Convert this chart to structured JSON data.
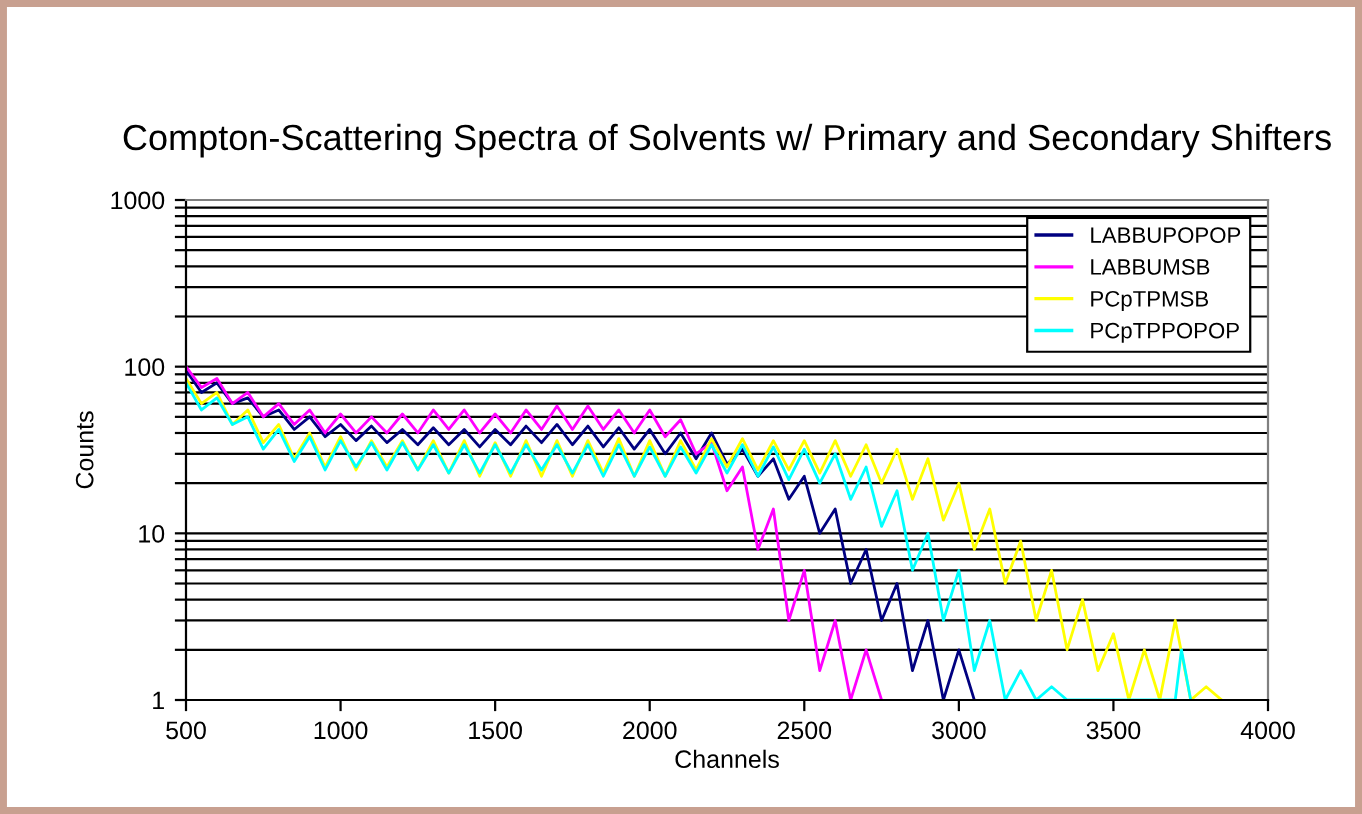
{
  "chart_data": {
    "type": "line",
    "title": "Compton-Scattering Spectra of Solvents w/ Primary and Secondary Shifters",
    "xlabel": "Channels",
    "ylabel": "Counts",
    "log": "y",
    "grid": "y",
    "legend": "top right",
    "marker": "none",
    "line_style": "solid",
    "xlim": [
      500,
      4000
    ],
    "xticks": [
      500,
      1000,
      1500,
      2000,
      2500,
      3000,
      3500,
      4000
    ],
    "ylim": [
      1,
      1000
    ],
    "yticks": [
      1,
      {
        "value": 2,
        "label": null
      },
      {
        "value": 3,
        "label": null
      },
      {
        "value": 4,
        "label": null
      },
      {
        "value": 5,
        "label": null
      },
      {
        "value": 6,
        "label": null
      },
      {
        "value": 7,
        "label": null
      },
      {
        "value": 8,
        "label": null
      },
      {
        "value": 9,
        "label": null
      },
      10,
      {
        "value": 20,
        "label": null
      },
      {
        "value": 30,
        "label": null
      },
      {
        "value": 40,
        "label": null
      },
      {
        "value": 50,
        "label": null
      },
      {
        "value": 60,
        "label": null
      },
      {
        "value": 70,
        "label": null
      },
      {
        "value": 80,
        "label": null
      },
      {
        "value": 90,
        "label": null
      },
      100,
      {
        "value": 200,
        "label": null
      },
      {
        "value": 300,
        "label": null
      },
      {
        "value": 400,
        "label": null
      },
      {
        "value": 500,
        "label": null
      },
      {
        "value": 600,
        "label": null
      },
      {
        "value": 700,
        "label": null
      },
      {
        "value": 800,
        "label": null
      },
      {
        "value": 900,
        "label": null
      },
      1000
    ],
    "series": [
      {
        "name": "LABBUPOPOP",
        "color": "#000080",
        "x": [
          500,
          550,
          600,
          650,
          700,
          750,
          800,
          850,
          900,
          950,
          1000,
          1050,
          1100,
          1150,
          1200,
          1250,
          1300,
          1350,
          1400,
          1450,
          1500,
          1550,
          1600,
          1650,
          1700,
          1750,
          1800,
          1850,
          1900,
          1950,
          2000,
          2050,
          2100,
          2150,
          2200,
          2250,
          2300,
          2350,
          2400,
          2450,
          2500,
          2550,
          2600,
          2650,
          2700,
          2750,
          2800,
          2850,
          2900,
          2950,
          3000,
          3050
        ],
        "values": [
          95,
          70,
          80,
          60,
          65,
          50,
          55,
          42,
          50,
          38,
          45,
          36,
          44,
          35,
          42,
          34,
          43,
          34,
          42,
          33,
          42,
          34,
          44,
          35,
          45,
          34,
          44,
          33,
          43,
          32,
          42,
          30,
          40,
          28,
          40,
          26,
          32,
          22,
          28,
          16,
          22,
          10,
          14,
          5,
          8,
          3,
          5,
          1.5,
          3,
          1,
          2,
          1
        ]
      },
      {
        "name": "LABBUMSB",
        "color": "#ff00ff",
        "x": [
          500,
          550,
          600,
          650,
          700,
          750,
          800,
          850,
          900,
          950,
          1000,
          1050,
          1100,
          1150,
          1200,
          1250,
          1300,
          1350,
          1400,
          1450,
          1500,
          1550,
          1600,
          1650,
          1700,
          1750,
          1800,
          1850,
          1900,
          1950,
          2000,
          2050,
          2100,
          2150,
          2200,
          2250,
          2300,
          2350,
          2400,
          2450,
          2500,
          2550,
          2600,
          2650,
          2700,
          2750
        ],
        "values": [
          100,
          75,
          85,
          60,
          70,
          50,
          60,
          45,
          55,
          40,
          52,
          40,
          50,
          40,
          52,
          40,
          55,
          42,
          55,
          40,
          52,
          40,
          55,
          42,
          58,
          42,
          58,
          42,
          55,
          40,
          55,
          38,
          48,
          30,
          35,
          18,
          25,
          8,
          14,
          3,
          6,
          1.5,
          3,
          1,
          2,
          1
        ]
      },
      {
        "name": "PCpTPMSB",
        "color": "#ffff00",
        "x": [
          500,
          550,
          600,
          650,
          700,
          750,
          800,
          850,
          900,
          950,
          1000,
          1050,
          1100,
          1150,
          1200,
          1250,
          1300,
          1350,
          1400,
          1450,
          1500,
          1550,
          1600,
          1650,
          1700,
          1750,
          1800,
          1850,
          1900,
          1950,
          2000,
          2050,
          2100,
          2150,
          2200,
          2250,
          2300,
          2350,
          2400,
          2450,
          2500,
          2550,
          2600,
          2650,
          2700,
          2750,
          2800,
          2850,
          2900,
          2950,
          3000,
          3050,
          3100,
          3150,
          3200,
          3250,
          3300,
          3350,
          3400,
          3450,
          3500,
          3550,
          3600,
          3650,
          3700,
          3750,
          3800,
          3850
        ],
        "values": [
          85,
          60,
          70,
          45,
          55,
          35,
          45,
          28,
          40,
          25,
          38,
          24,
          36,
          25,
          36,
          24,
          36,
          23,
          36,
          22,
          35,
          22,
          36,
          22,
          36,
          22,
          36,
          23,
          37,
          22,
          36,
          22,
          36,
          24,
          37,
          25,
          37,
          24,
          36,
          24,
          36,
          23,
          36,
          22,
          34,
          20,
          32,
          16,
          28,
          12,
          20,
          8,
          14,
          5,
          9,
          3,
          6,
          2,
          4,
          1.5,
          2.5,
          1,
          2,
          1,
          3,
          1,
          1.2,
          1
        ]
      },
      {
        "name": "PCpTPPOPOP",
        "color": "#00ffff",
        "x": [
          500,
          550,
          600,
          650,
          700,
          750,
          800,
          850,
          900,
          950,
          1000,
          1050,
          1100,
          1150,
          1200,
          1250,
          1300,
          1350,
          1400,
          1450,
          1500,
          1550,
          1600,
          1650,
          1700,
          1750,
          1800,
          1850,
          1900,
          1950,
          2000,
          2050,
          2100,
          2150,
          2200,
          2250,
          2300,
          2350,
          2400,
          2450,
          2500,
          2550,
          2600,
          2650,
          2700,
          2750,
          2800,
          2850,
          2900,
          2950,
          3000,
          3050,
          3100,
          3150,
          3200,
          3250,
          3300,
          3350,
          3400,
          3500,
          3600,
          3700,
          3720,
          3750
        ],
        "values": [
          80,
          55,
          65,
          45,
          50,
          32,
          42,
          27,
          38,
          24,
          36,
          25,
          35,
          24,
          35,
          24,
          34,
          23,
          34,
          23,
          34,
          23,
          34,
          24,
          34,
          23,
          34,
          22,
          34,
          22,
          33,
          22,
          33,
          23,
          34,
          23,
          34,
          22,
          33,
          21,
          32,
          20,
          30,
          16,
          25,
          11,
          18,
          6,
          10,
          3,
          6,
          1.5,
          3,
          1,
          1.5,
          1,
          1.2,
          1,
          1,
          1,
          1,
          1,
          2,
          1
        ]
      }
    ]
  }
}
